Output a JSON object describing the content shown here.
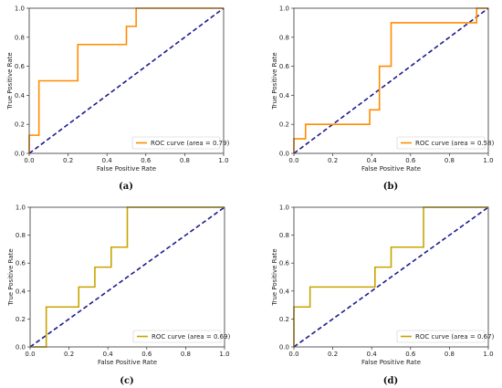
{
  "colors": {
    "roc_orange": "#ff8c00",
    "roc_olive": "#c8a400",
    "chance": "#1c1c8c",
    "axis": "#333333"
  },
  "chart_data": [
    {
      "type": "line",
      "panel_label": "(a)",
      "xlabel": "False Positive Rate",
      "ylabel": "True Positive Rate",
      "xlim": [
        0,
        1
      ],
      "ylim": [
        0,
        1
      ],
      "xticks": [
        "0.0",
        "0.2",
        "0.4",
        "0.6",
        "0.8",
        "1.0"
      ],
      "yticks": [
        "0.0",
        "0.2",
        "0.4",
        "0.6",
        "0.8",
        "1.0"
      ],
      "legend_position": "lower-right",
      "series": [
        {
          "name": "ROC curve (area = 0.79)",
          "color": "#ff8c00",
          "x": [
            0,
            0,
            0.05,
            0.05,
            0.25,
            0.25,
            0.5,
            0.5,
            0.55,
            0.55,
            1
          ],
          "y": [
            0,
            0.125,
            0.125,
            0.5,
            0.5,
            0.75,
            0.75,
            0.875,
            0.875,
            1,
            1
          ]
        }
      ],
      "diagonal": {
        "x": [
          0,
          1
        ],
        "y": [
          0,
          1
        ],
        "style": "dashed"
      }
    },
    {
      "type": "line",
      "panel_label": "(b)",
      "xlabel": "False Positive Rate",
      "ylabel": "True Positive Rate",
      "xlim": [
        0,
        1
      ],
      "ylim": [
        0,
        1
      ],
      "xticks": [
        "0.0",
        "0.2",
        "0.4",
        "0.6",
        "0.8",
        "1.0"
      ],
      "yticks": [
        "0.0",
        "0.2",
        "0.4",
        "0.6",
        "0.8",
        "1.0"
      ],
      "legend_position": "lower-right",
      "series": [
        {
          "name": "ROC curve (area = 0.58)",
          "color": "#ff8c00",
          "x": [
            0,
            0,
            0.06,
            0.06,
            0.39,
            0.39,
            0.44,
            0.44,
            0.5,
            0.5,
            0.94,
            0.94,
            1
          ],
          "y": [
            0,
            0.1,
            0.1,
            0.2,
            0.2,
            0.3,
            0.3,
            0.6,
            0.6,
            0.9,
            0.9,
            1,
            1
          ]
        }
      ],
      "diagonal": {
        "x": [
          0,
          1
        ],
        "y": [
          0,
          1
        ],
        "style": "dashed"
      }
    },
    {
      "type": "line",
      "panel_label": "(c)",
      "xlabel": "False Positive Rate",
      "ylabel": "True Positive Rate",
      "xlim": [
        0,
        1
      ],
      "ylim": [
        0,
        1
      ],
      "xticks": [
        "0.0",
        "0.2",
        "0.4",
        "0.6",
        "0.8",
        "1.0"
      ],
      "yticks": [
        "0.0",
        "0.2",
        "0.4",
        "0.6",
        "0.8",
        "1.0"
      ],
      "legend_position": "lower-right",
      "series": [
        {
          "name": "ROC curve (area = 0.69)",
          "color": "#c8a400",
          "x": [
            0,
            0.083,
            0.083,
            0.25,
            0.25,
            0.333,
            0.333,
            0.417,
            0.417,
            0.5,
            0.5,
            1
          ],
          "y": [
            0,
            0,
            0.286,
            0.286,
            0.429,
            0.429,
            0.571,
            0.571,
            0.714,
            0.714,
            1,
            1
          ]
        }
      ],
      "diagonal": {
        "x": [
          0,
          1
        ],
        "y": [
          0,
          1
        ],
        "style": "dashed"
      }
    },
    {
      "type": "line",
      "panel_label": "(d)",
      "xlabel": "False Positive Rate",
      "ylabel": "True Positive Rate",
      "xlim": [
        0,
        1
      ],
      "ylim": [
        0,
        1
      ],
      "xticks": [
        "0.0",
        "0.2",
        "0.4",
        "0.6",
        "0.8",
        "1.0"
      ],
      "yticks": [
        "0.0",
        "0.2",
        "0.4",
        "0.6",
        "0.8",
        "1.0"
      ],
      "legend_position": "lower-right",
      "series": [
        {
          "name": "ROC curve (area = 0.67)",
          "color": "#c8a400",
          "x": [
            0,
            0,
            0.083,
            0.083,
            0.417,
            0.417,
            0.5,
            0.5,
            0.667,
            0.667,
            1
          ],
          "y": [
            0,
            0.286,
            0.286,
            0.429,
            0.429,
            0.571,
            0.571,
            0.714,
            0.714,
            1,
            1
          ]
        }
      ],
      "diagonal": {
        "x": [
          0,
          1
        ],
        "y": [
          0,
          1
        ],
        "style": "dashed"
      }
    }
  ]
}
